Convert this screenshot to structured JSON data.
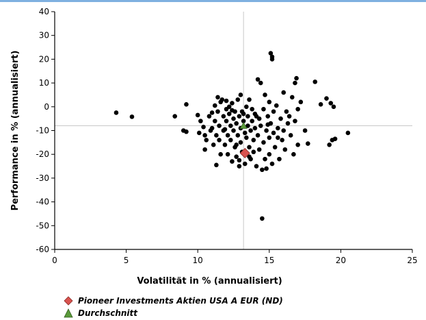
{
  "chart_data": {
    "type": "scatter",
    "xlabel": "Volatilität in % (annualisiert)",
    "ylabel": "Performance in % (annualisiert)",
    "xlim": [
      0,
      25
    ],
    "ylim": [
      -60,
      40
    ],
    "xticks": [
      "0",
      "5",
      "10",
      "15",
      "20",
      "25"
    ],
    "yticks": [
      "40",
      "30",
      "20",
      "10",
      "0",
      "-10",
      "-20",
      "-30",
      "-40",
      "-50",
      "-60"
    ],
    "reference_lines": {
      "x": 13.2,
      "y": -8.0
    },
    "series": [
      {
        "name": "",
        "color": "#000000",
        "points": [
          [
            4.3,
            -2.5
          ],
          [
            5.4,
            -4.2
          ],
          [
            8.4,
            -4.0
          ],
          [
            9.2,
            1.0
          ],
          [
            9.0,
            -10.0
          ],
          [
            9.2,
            -10.5
          ],
          [
            10.0,
            -3.5
          ],
          [
            10.2,
            -6.0
          ],
          [
            10.4,
            -8.5
          ],
          [
            10.5,
            -12.0
          ],
          [
            10.5,
            -18.0
          ],
          [
            10.6,
            -14.0
          ],
          [
            10.8,
            -4.0
          ],
          [
            10.9,
            -10.0
          ],
          [
            11.0,
            -2.5
          ],
          [
            11.0,
            -9.0
          ],
          [
            11.1,
            -16.0
          ],
          [
            11.2,
            0.5
          ],
          [
            11.2,
            -6.0
          ],
          [
            11.3,
            -12.0
          ],
          [
            11.3,
            -24.5
          ],
          [
            11.4,
            -2.0
          ],
          [
            11.4,
            4.0
          ],
          [
            11.5,
            -8.0
          ],
          [
            11.5,
            -14.0
          ],
          [
            11.6,
            -20.0
          ],
          [
            11.6,
            2.0
          ],
          [
            11.8,
            -4.0
          ],
          [
            11.8,
            -10.0
          ],
          [
            11.9,
            -16.0
          ],
          [
            12.0,
            -1.0
          ],
          [
            12.0,
            -6.0
          ],
          [
            12.0,
            2.5
          ],
          [
            12.1,
            -12.0
          ],
          [
            12.1,
            -20.0
          ],
          [
            12.2,
            0.0
          ],
          [
            12.2,
            -3.0
          ],
          [
            12.3,
            -8.0
          ],
          [
            12.3,
            -14.0
          ],
          [
            12.4,
            -23.0
          ],
          [
            12.4,
            1.5
          ],
          [
            12.5,
            -5.0
          ],
          [
            12.5,
            -10.0
          ],
          [
            12.6,
            -2.0
          ],
          [
            12.6,
            -17.0
          ],
          [
            12.7,
            -7.0
          ],
          [
            12.7,
            -21.0
          ],
          [
            12.8,
            3.0
          ],
          [
            12.8,
            -12.0
          ],
          [
            12.9,
            -4.0
          ],
          [
            12.9,
            -25.0
          ],
          [
            13.0,
            -9.0
          ],
          [
            13.0,
            -15.0
          ],
          [
            13.0,
            5.0
          ],
          [
            13.1,
            -2.0
          ],
          [
            13.1,
            -19.0
          ],
          [
            13.2,
            -6.0
          ],
          [
            13.3,
            -11.0
          ],
          [
            13.3,
            -24.0
          ],
          [
            13.4,
            0.0
          ],
          [
            13.4,
            -13.0
          ],
          [
            13.5,
            -4.0
          ],
          [
            13.5,
            -8.0
          ],
          [
            13.6,
            -17.0
          ],
          [
            13.6,
            3.0
          ],
          [
            13.7,
            -10.0
          ],
          [
            13.7,
            -22.0
          ],
          [
            13.8,
            -1.0
          ],
          [
            13.8,
            -6.0
          ],
          [
            13.9,
            -14.0
          ],
          [
            13.9,
            -19.0
          ],
          [
            14.0,
            -3.0
          ],
          [
            14.0,
            -9.0
          ],
          [
            14.1,
            -25.0
          ],
          [
            14.2,
            11.5
          ],
          [
            14.2,
            -12.0
          ],
          [
            14.3,
            -5.0
          ],
          [
            14.3,
            -18.0
          ],
          [
            14.4,
            10.0
          ],
          [
            14.4,
            -8.0
          ],
          [
            14.5,
            -47.0
          ],
          [
            14.5,
            -26.5
          ],
          [
            14.6,
            -15.0
          ],
          [
            14.6,
            -1.0
          ],
          [
            14.7,
            5.0
          ],
          [
            14.7,
            -22.0
          ],
          [
            14.8,
            -10.0
          ],
          [
            14.8,
            -26.0
          ],
          [
            14.9,
            -4.0
          ],
          [
            15.0,
            2.0
          ],
          [
            15.0,
            -13.0
          ],
          [
            15.0,
            -20.0
          ],
          [
            15.1,
            22.5
          ],
          [
            15.1,
            -7.0
          ],
          [
            15.2,
            21.0
          ],
          [
            15.2,
            20.0
          ],
          [
            15.2,
            -24.0
          ],
          [
            15.3,
            -2.0
          ],
          [
            15.3,
            -11.0
          ],
          [
            15.4,
            -17.0
          ],
          [
            15.5,
            0.5
          ],
          [
            15.6,
            -9.0
          ],
          [
            15.7,
            -22.0
          ],
          [
            15.8,
            -5.0
          ],
          [
            15.9,
            -14.0
          ],
          [
            16.0,
            -10.0
          ],
          [
            16.0,
            6.0
          ],
          [
            16.1,
            -18.0
          ],
          [
            16.2,
            -2.0
          ],
          [
            16.3,
            -7.0
          ],
          [
            16.5,
            -12.0
          ],
          [
            16.6,
            4.0
          ],
          [
            16.7,
            -20.0
          ],
          [
            16.8,
            10.0
          ],
          [
            16.8,
            -6.0
          ],
          [
            16.9,
            12.0
          ],
          [
            17.0,
            -1.0
          ],
          [
            17.0,
            -16.0
          ],
          [
            17.2,
            2.0
          ],
          [
            17.5,
            -10.0
          ],
          [
            17.7,
            -15.5
          ],
          [
            18.2,
            10.5
          ],
          [
            18.6,
            1.0
          ],
          [
            19.0,
            3.5
          ],
          [
            19.2,
            -16.0
          ],
          [
            19.3,
            1.5
          ],
          [
            19.4,
            -14.0
          ],
          [
            19.5,
            0.0
          ],
          [
            19.6,
            -13.5
          ],
          [
            20.5,
            -11.0
          ],
          [
            12.9,
            -22.5
          ],
          [
            11.7,
            3.0
          ],
          [
            14.1,
            -4.0
          ],
          [
            13.2,
            -3.0
          ],
          [
            12.4,
            -1.5
          ],
          [
            15.6,
            -13.0
          ],
          [
            10.1,
            -11.0
          ],
          [
            11.9,
            -9.5
          ],
          [
            13.6,
            -21.0
          ],
          [
            14.9,
            -7.5
          ],
          [
            12.7,
            -16.0
          ],
          [
            16.4,
            -4.0
          ]
        ]
      },
      {
        "name": "Pioneer Investments Aktien USA A EUR (ND)",
        "color": "#d9534f",
        "marker": "diamond",
        "points": [
          [
            13.3,
            -19.5
          ]
        ]
      },
      {
        "name": "Durchschnitt",
        "color": "#5a9a3a",
        "marker": "triangle",
        "points": [
          [
            13.2,
            -8.0
          ]
        ]
      }
    ]
  },
  "legend": {
    "items": [
      {
        "label": "Pioneer Investments Aktien USA A EUR (ND)",
        "color": "#d9534f",
        "icon": "diamond-icon"
      },
      {
        "label": "Durchschnitt",
        "color": "#5a9a3a",
        "icon": "triangle-icon"
      }
    ]
  }
}
